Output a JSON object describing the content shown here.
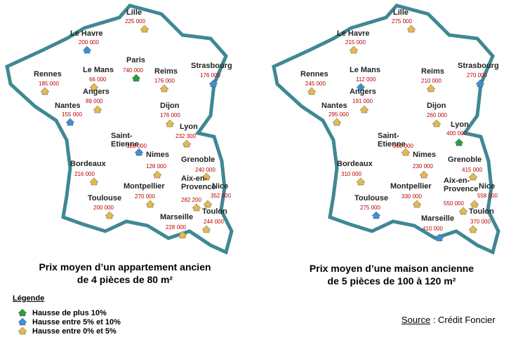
{
  "maps": [
    {
      "caption": [
        "Prix moyen d’un appartement ancien",
        "de 4 pièces de 80 m²"
      ],
      "cities": [
        {
          "name": "Lille",
          "price": "225 000",
          "color": "#e6b94c"
        },
        {
          "name": "Le Havre",
          "price": "200 000",
          "color": "#3b8fd6"
        },
        {
          "name": "Paris",
          "price": "740 000",
          "color": "#2f9a3b"
        },
        {
          "name": "Rennes",
          "price": "185 000",
          "color": "#e6b94c"
        },
        {
          "name": "Le Mans",
          "price": "66 000",
          "color": "#e6b94c"
        },
        {
          "name": "Reims",
          "price": "176 000",
          "color": "#e6b94c"
        },
        {
          "name": "Strasbourg",
          "price": "176 000",
          "color": "#3b8fd6"
        },
        {
          "name": "Angers",
          "price": "89 000",
          "color": "#e6b94c"
        },
        {
          "name": "Nantes",
          "price": "155 000",
          "color": "#3b8fd6"
        },
        {
          "name": "Dijon",
          "price": "176 000",
          "color": "#e6b94c"
        },
        {
          "name": "Lyon",
          "price": "232 300",
          "color": "#e6b94c"
        },
        {
          "name": "Saint-Etienne",
          "price": "128 000",
          "color": "#3b8fd6"
        },
        {
          "name": "Nimes",
          "price": "128 000",
          "color": "#e6b94c"
        },
        {
          "name": "Bordeaux",
          "price": "216 000",
          "color": "#e6b94c"
        },
        {
          "name": "Grenoble",
          "price": "240 000",
          "color": "#e6b94c"
        },
        {
          "name": "Montpellier",
          "price": "270 000",
          "color": "#e6b94c"
        },
        {
          "name": "Aix-en-Provence",
          "price": "282 200",
          "color": "#e6b94c"
        },
        {
          "name": "Nice",
          "price": "352 800",
          "color": "#e6b94c"
        },
        {
          "name": "Toulouse",
          "price": "200 000",
          "color": "#e6b94c"
        },
        {
          "name": "Marseille",
          "price": "228 000",
          "color": "#e6b94c"
        },
        {
          "name": "Toulon",
          "price": "244 000",
          "color": "#e6b94c"
        }
      ]
    },
    {
      "caption": [
        "Prix moyen d’une maison ancienne",
        "de 5 pièces de 100 à 120 m²"
      ],
      "cities": [
        {
          "name": "Lille",
          "price": "275 000",
          "color": "#e6b94c"
        },
        {
          "name": "Le Havre",
          "price": "215 000",
          "color": "#e6b94c"
        },
        {
          "name": "Rennes",
          "price": "245 000",
          "color": "#e6b94c"
        },
        {
          "name": "Le Mans",
          "price": "112 000",
          "color": "#3b8fd6"
        },
        {
          "name": "Reims",
          "price": "210 000",
          "color": "#e6b94c"
        },
        {
          "name": "Strasbourg",
          "price": "270 000",
          "color": "#3b8fd6"
        },
        {
          "name": "Angers",
          "price": "191 000",
          "color": "#e6b94c"
        },
        {
          "name": "Nantes",
          "price": "295 000",
          "color": "#e6b94c"
        },
        {
          "name": "Dijon",
          "price": "260 000",
          "color": "#e6b94c"
        },
        {
          "name": "Lyon",
          "price": "400 000",
          "color": "#2f9a3b"
        },
        {
          "name": "Saint-Etienne",
          "price": "200 000",
          "color": "#e6b94c"
        },
        {
          "name": "Nimes",
          "price": "230 000",
          "color": "#e6b94c"
        },
        {
          "name": "Bordeaux",
          "price": "310 000",
          "color": "#e6b94c"
        },
        {
          "name": "Grenoble",
          "price": "415 000",
          "color": "#e6b94c"
        },
        {
          "name": "Montpellier",
          "price": "330 000",
          "color": "#e6b94c"
        },
        {
          "name": "Aix-en-Provence",
          "price": "550 000",
          "color": "#e6b94c"
        },
        {
          "name": "Nice",
          "price": "558 000",
          "color": "#e6b94c"
        },
        {
          "name": "Toulouse",
          "price": "275 000",
          "color": "#3b8fd6"
        },
        {
          "name": "Marseille",
          "price": "410 000",
          "color": "#3b8fd6"
        },
        {
          "name": "Toulon",
          "price": "370 000",
          "color": "#e6b94c"
        }
      ]
    }
  ],
  "legend": {
    "title": "Légende",
    "items": [
      {
        "label": "Hausse de plus 10%",
        "color": "#2f9a3b"
      },
      {
        "label": "Hausse entre 5% et 10%",
        "color": "#3b8fd6"
      },
      {
        "label": "Hausse entre 0% et 5%",
        "color": "#e6b94c"
      }
    ]
  },
  "source": {
    "label": "Source",
    "text": " : Crédit Foncier"
  }
}
